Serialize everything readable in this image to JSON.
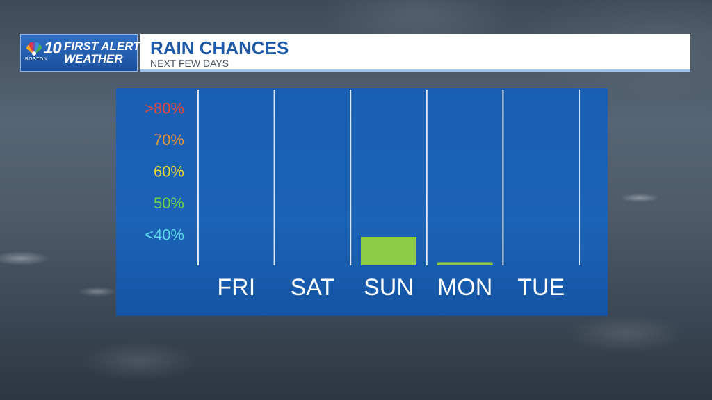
{
  "brand": {
    "station_number": "10",
    "station_city": "BOSTON",
    "line1": "FIRST ALERT",
    "line2": "WEATHER"
  },
  "header": {
    "title": "RAIN CHANCES",
    "subtitle": "NEXT FEW DAYS"
  },
  "colors": {
    "bar": "#8fcc45",
    "panel": "#1c64bb",
    "title_blue": "#1e5aa8",
    "label_80": "#e8463a",
    "label_70": "#e8923a",
    "label_60": "#ecd63a",
    "label_50": "#6fd44a",
    "label_40": "#5fd8ea"
  },
  "chart_data": {
    "type": "bar",
    "title": "RAIN CHANCES",
    "subtitle": "NEXT FEW DAYS",
    "categories": [
      "FRI",
      "SAT",
      "SUN",
      "MON",
      "TUE"
    ],
    "values": [
      30,
      30,
      39,
      31,
      30
    ],
    "ylim": [
      30,
      86
    ],
    "y_tick_labels": [
      {
        "value": 40,
        "label": "<40%",
        "color": "#5fd8ea"
      },
      {
        "value": 50,
        "label": "50%",
        "color": "#6fd44a"
      },
      {
        "value": 60,
        "label": "60%",
        "color": "#ecd63a"
      },
      {
        "value": 70,
        "label": "70%",
        "color": "#e8923a"
      },
      {
        "value": 80,
        "label": ">80%",
        "color": "#e8463a"
      }
    ],
    "grid": "vertical separators"
  }
}
